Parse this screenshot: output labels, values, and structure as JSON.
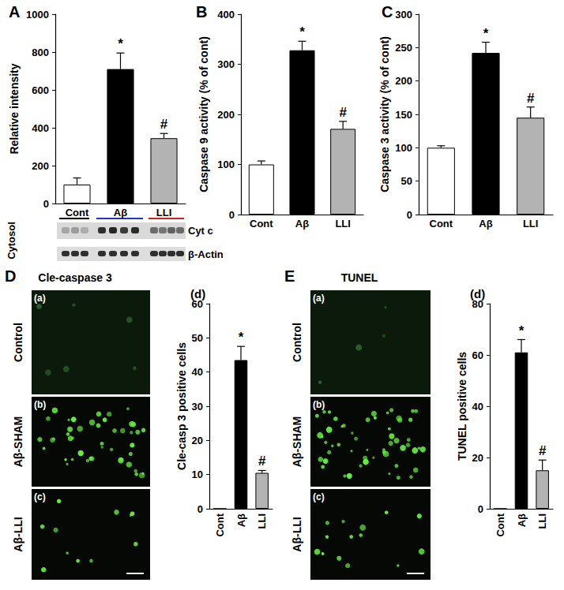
{
  "chart_data": [
    {
      "type": "bar",
      "title": "A",
      "ylabel": "Relative intensity",
      "categories": [
        "Cont",
        "Aβ",
        "LLI"
      ],
      "values": [
        100,
        710,
        345
      ],
      "errors": [
        35,
        85,
        25
      ],
      "annotations": [
        null,
        "*",
        "#"
      ],
      "colors": [
        "#ffffff",
        "#000000",
        "#b3b3b3"
      ],
      "ylim": [
        0,
        1000
      ],
      "yticks": [
        0,
        200,
        400,
        600,
        800,
        1000
      ],
      "grid": false
    },
    {
      "type": "bar",
      "title": "B",
      "ylabel": "Caspase 9 activity (% of cont)",
      "categories": [
        "Cont",
        "Aβ",
        "LLI"
      ],
      "values": [
        100,
        328,
        171
      ],
      "errors": [
        7,
        18,
        15
      ],
      "annotations": [
        null,
        "*",
        "#"
      ],
      "colors": [
        "#ffffff",
        "#000000",
        "#b3b3b3"
      ],
      "ylim": [
        0,
        400
      ],
      "yticks": [
        0,
        100,
        200,
        300,
        400
      ],
      "grid": false
    },
    {
      "type": "bar",
      "title": "C",
      "ylabel": "Caspase 3 activity (% of cont)",
      "categories": [
        "Cont",
        "Aβ",
        "LLI"
      ],
      "values": [
        100,
        242,
        145
      ],
      "errors": [
        3,
        16,
        16
      ],
      "annotations": [
        null,
        "*",
        "#"
      ],
      "colors": [
        "#ffffff",
        "#000000",
        "#b3b3b3"
      ],
      "ylim": [
        0,
        300
      ],
      "yticks": [
        0,
        50,
        100,
        150,
        200,
        250,
        300
      ],
      "grid": false
    },
    {
      "type": "bar",
      "title": "(d)",
      "ylabel": "Cle-casp 3 positive cells",
      "categories": [
        "Cont",
        "Aβ",
        "LLI"
      ],
      "values": [
        0,
        43.5,
        10.5
      ],
      "errors": [
        0,
        4,
        0.7
      ],
      "annotations": [
        null,
        "*",
        "#"
      ],
      "colors": [
        "#ffffff",
        "#000000",
        "#b3b3b3"
      ],
      "ylim": [
        0,
        60
      ],
      "yticks": [
        0,
        10,
        20,
        30,
        40,
        50,
        60
      ],
      "grid": false
    },
    {
      "type": "bar",
      "title": "(d)",
      "ylabel": "TUNEL positive cells",
      "categories": [
        "Cont",
        "Aβ",
        "LLI"
      ],
      "values": [
        0,
        61,
        15
      ],
      "errors": [
        0,
        5,
        4
      ],
      "annotations": [
        null,
        "*",
        "#"
      ],
      "colors": [
        "#ffffff",
        "#000000",
        "#b3b3b3"
      ],
      "ylim": [
        0,
        80
      ],
      "yticks": [
        0,
        20,
        40,
        60,
        80
      ],
      "grid": false
    }
  ],
  "blot": {
    "fraction": "Cytosol",
    "rows": [
      "Cyt c",
      "β-Actin"
    ]
  },
  "micrographs": [
    {
      "panel": "D",
      "title": "Cle-caspase 3",
      "images": [
        {
          "tag": "(a)",
          "label": "Control"
        },
        {
          "tag": "(b)",
          "label": "Aβ-SHAM"
        },
        {
          "tag": "(c)",
          "label": "Aβ-LLI"
        }
      ]
    },
    {
      "panel": "E",
      "title": "TUNEL",
      "images": [
        {
          "tag": "(a)",
          "label": "Control"
        },
        {
          "tag": "(b)",
          "label": "Aβ-SHAM"
        },
        {
          "tag": "(c)",
          "label": "Aβ-LLI"
        }
      ]
    }
  ]
}
